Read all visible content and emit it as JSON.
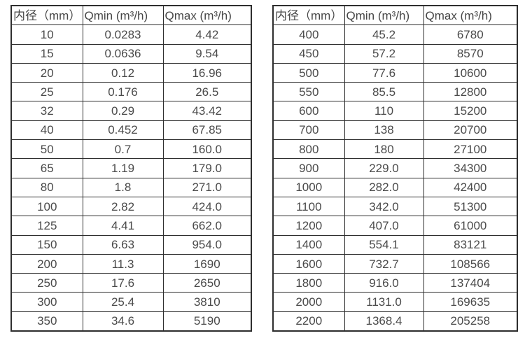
{
  "colors": {
    "background": "#ffffff",
    "border": "#2e2e2e",
    "text": "#4a4a4a"
  },
  "chart_data": [
    {
      "type": "table",
      "columns": [
        "内径（mm）",
        "Qmin (m³/h)",
        "Qmax (m³/h)"
      ],
      "rows": [
        [
          "10",
          "0.0283",
          "4.42"
        ],
        [
          "15",
          "0.0636",
          "9.54"
        ],
        [
          "20",
          "0.12",
          "16.96"
        ],
        [
          "25",
          "0.176",
          "26.5"
        ],
        [
          "32",
          "0.29",
          "43.42"
        ],
        [
          "40",
          "0.452",
          "67.85"
        ],
        [
          "50",
          "0.7",
          "160.0"
        ],
        [
          "65",
          "1.19",
          "179.0"
        ],
        [
          "80",
          "1.8",
          "271.0"
        ],
        [
          "100",
          "2.82",
          "424.0"
        ],
        [
          "125",
          "4.41",
          "662.0"
        ],
        [
          "150",
          "6.63",
          "954.0"
        ],
        [
          "200",
          "11.3",
          "1690"
        ],
        [
          "250",
          "17.6",
          "2650"
        ],
        [
          "300",
          "25.4",
          "3810"
        ],
        [
          "350",
          "34.6",
          "5190"
        ]
      ]
    },
    {
      "type": "table",
      "columns": [
        "内径（mm）",
        "Qmin (m³/h)",
        "Qmax (m³/h)"
      ],
      "rows": [
        [
          "400",
          "45.2",
          "6780"
        ],
        [
          "450",
          "57.2",
          "8570"
        ],
        [
          "500",
          "77.6",
          "10600"
        ],
        [
          "550",
          "85.5",
          "12800"
        ],
        [
          "600",
          "110",
          "15200"
        ],
        [
          "700",
          "138",
          "20700"
        ],
        [
          "800",
          "180",
          "27100"
        ],
        [
          "900",
          "229.0",
          "34300"
        ],
        [
          "1000",
          "282.0",
          "42400"
        ],
        [
          "1100",
          "342.0",
          "51300"
        ],
        [
          "1200",
          "407.0",
          "61000"
        ],
        [
          "1400",
          "554.1",
          "83121"
        ],
        [
          "1600",
          "732.7",
          "108566"
        ],
        [
          "1800",
          "916.0",
          "137404"
        ],
        [
          "2000",
          "1131.0",
          "169635"
        ],
        [
          "2200",
          "1368.4",
          "205258"
        ]
      ]
    }
  ]
}
